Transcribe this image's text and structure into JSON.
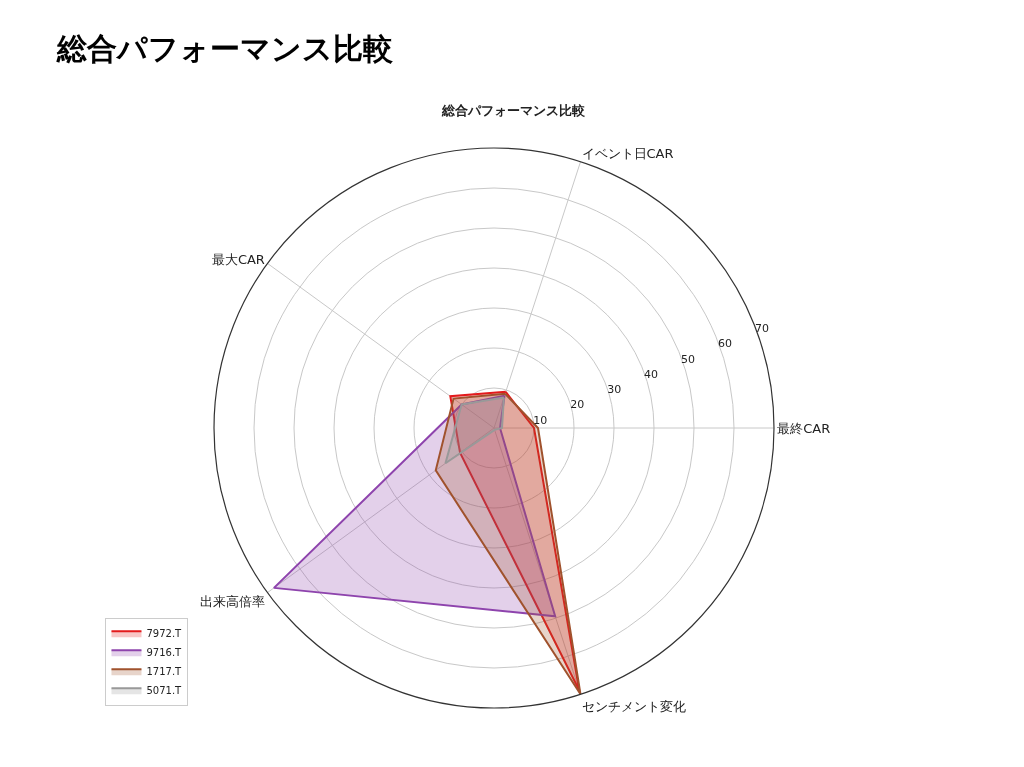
{
  "chart_data": {
    "type": "radar",
    "title": "総合パフォーマンス比較",
    "subtitle": "総合パフォーマンス比較",
    "categories": [
      "イベント日CAR",
      "最終CAR",
      "センチメント変化",
      "出来高倍率",
      "最大CAR"
    ],
    "series": [
      {
        "name": "7972.T",
        "color": "#e31a1c",
        "values": [
          9.5,
          10,
          69,
          10.5,
          13.5
        ]
      },
      {
        "name": "9716.T",
        "color": "#8e44ad",
        "values": [
          8.5,
          1.5,
          49.5,
          68,
          10
        ]
      },
      {
        "name": "1717.T",
        "color": "#a0522d",
        "values": [
          9,
          11,
          70,
          18,
          12.5
        ]
      },
      {
        "name": "5071.T",
        "color": "#999999",
        "values": [
          8,
          2,
          0.5,
          15,
          10
        ]
      }
    ],
    "ylim": [
      0,
      70
    ],
    "yticks": [
      10,
      20,
      30,
      40,
      50,
      60,
      70
    ],
    "grid": true,
    "legend": "bottom left"
  }
}
